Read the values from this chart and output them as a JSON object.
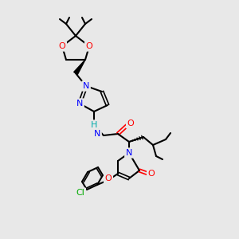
{
  "bg_color": "#e8e8e8",
  "atom_colors": {
    "C": "#000000",
    "N": "#0000ff",
    "O": "#ff0000",
    "Cl": "#00aa00",
    "H": "#00aaaa"
  },
  "bond_color": "#000000",
  "bond_width": 1.2,
  "font_size": 7,
  "fig_size": [
    3.0,
    3.0
  ],
  "dpi": 100
}
